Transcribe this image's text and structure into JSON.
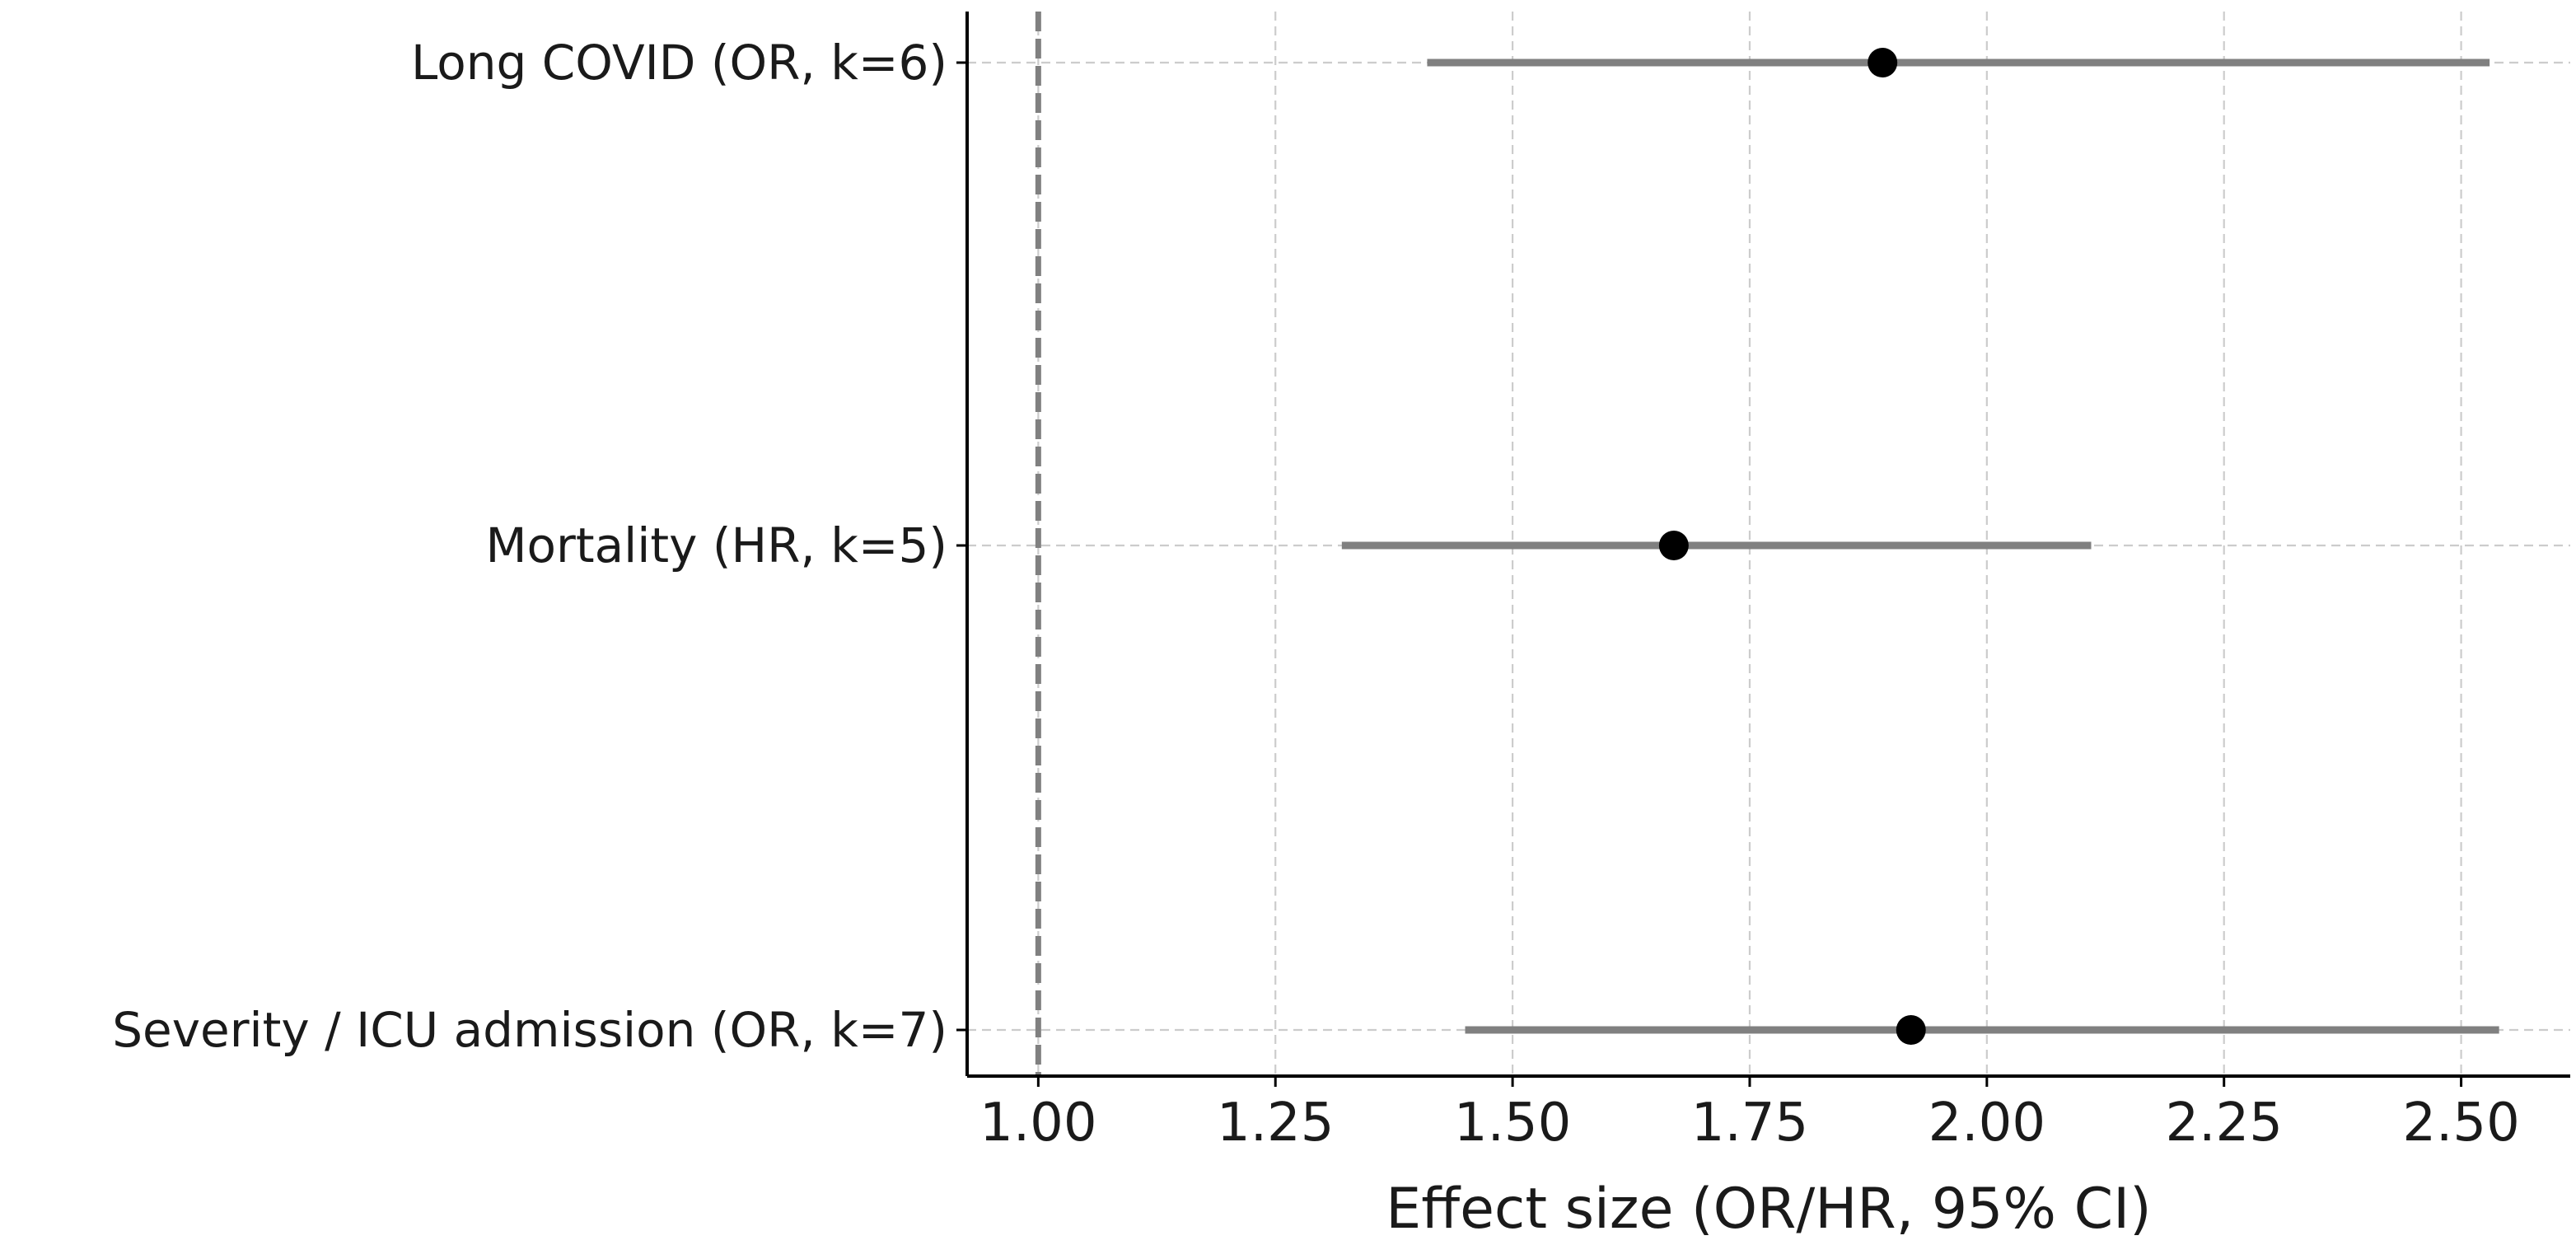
{
  "chart_data": {
    "type": "forest",
    "title": "",
    "xlabel": "Effect size (OR/HR, 95% CI)",
    "ylabel": "",
    "xlim": [
      0.925,
      2.615
    ],
    "xticks": [
      1.0,
      1.25,
      1.5,
      1.75,
      2.0,
      2.25,
      2.5
    ],
    "xtick_labels": [
      "1.00",
      "1.25",
      "1.50",
      "1.75",
      "2.00",
      "2.25",
      "2.50"
    ],
    "grid": true,
    "reference_line": 1.0,
    "categories": [
      "Long COVID (OR, k=6)",
      "Mortality (HR, k=5)",
      "Severity / ICU admission (OR, k=7)"
    ],
    "estimates": [
      1.89,
      1.67,
      1.92
    ],
    "ci_lower": [
      1.41,
      1.32,
      1.45
    ],
    "ci_upper": [
      2.53,
      2.11,
      2.54
    ],
    "colors": {
      "interval": "#808080",
      "point": "#000000",
      "reference": "#808080",
      "grid": "#cccccc",
      "axis": "#000000"
    }
  }
}
